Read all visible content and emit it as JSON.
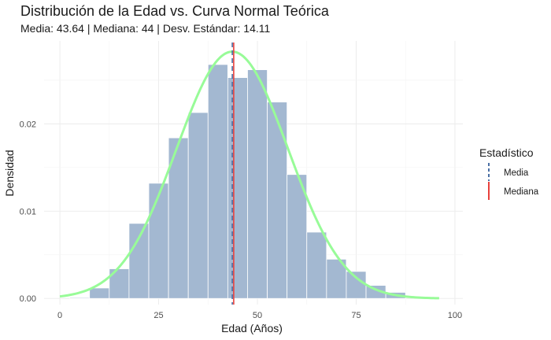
{
  "chart_data": {
    "type": "bar",
    "title": "Distribución de la Edad vs. Curva Normal Teórica",
    "subtitle": "Media: 43.64 | Mediana: 44 | Desv. Estándar: 14.11",
    "xlabel": "Edad (Años)",
    "ylabel": "Densidad",
    "xlim": [
      -4,
      102
    ],
    "ylim": [
      -0.0007,
      0.0295
    ],
    "x_ticks": [
      0,
      25,
      50,
      75,
      100
    ],
    "y_ticks": [
      0.0,
      0.01,
      0.02
    ],
    "y_tick_labels": [
      "0.00",
      "0.01",
      "0.02"
    ],
    "grid": true,
    "histogram": {
      "bin_width": 5,
      "bins": [
        {
          "start": 2.5,
          "end": 7.5,
          "density": 0.0001
        },
        {
          "start": 7.5,
          "end": 12.5,
          "density": 0.0012
        },
        {
          "start": 12.5,
          "end": 17.5,
          "density": 0.0034
        },
        {
          "start": 17.5,
          "end": 22.5,
          "density": 0.0086
        },
        {
          "start": 22.5,
          "end": 27.5,
          "density": 0.0132
        },
        {
          "start": 27.5,
          "end": 32.5,
          "density": 0.0184
        },
        {
          "start": 32.5,
          "end": 37.5,
          "density": 0.0213
        },
        {
          "start": 37.5,
          "end": 42.5,
          "density": 0.0268
        },
        {
          "start": 42.5,
          "end": 47.5,
          "density": 0.0253
        },
        {
          "start": 47.5,
          "end": 52.5,
          "density": 0.0262
        },
        {
          "start": 52.5,
          "end": 57.5,
          "density": 0.0225
        },
        {
          "start": 57.5,
          "end": 62.5,
          "density": 0.0142
        },
        {
          "start": 62.5,
          "end": 67.5,
          "density": 0.0076
        },
        {
          "start": 67.5,
          "end": 72.5,
          "density": 0.0045
        },
        {
          "start": 72.5,
          "end": 77.5,
          "density": 0.0031
        },
        {
          "start": 77.5,
          "end": 82.5,
          "density": 0.0015
        },
        {
          "start": 82.5,
          "end": 87.5,
          "density": 0.0007
        }
      ],
      "color": "#a3b8d1"
    },
    "normal_curve": {
      "mean": 43.64,
      "sd": 14.11,
      "x_range": [
        0,
        96
      ],
      "color": "#98fb98"
    },
    "vlines": [
      {
        "name": "Media",
        "x": 43.64,
        "color": "#4a6fa5",
        "style": "dashed"
      },
      {
        "name": "Mediana",
        "x": 44,
        "color": "#e8413c",
        "style": "solid"
      }
    ],
    "legend": {
      "title": "Estadístico",
      "placement": "right",
      "items": [
        {
          "label": "Media",
          "color": "#4a6fa5"
        },
        {
          "label": "Mediana",
          "color": "#e8413c"
        }
      ]
    }
  }
}
